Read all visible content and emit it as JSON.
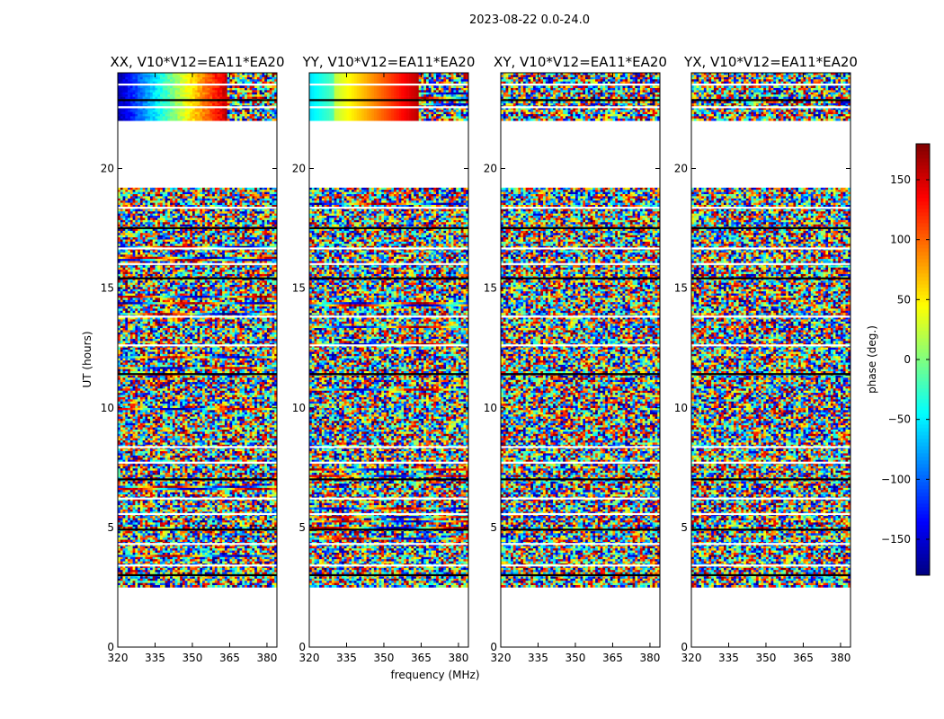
{
  "chart_data": {
    "type": "heatmap",
    "title": "2023-08-22 0.0-24.0",
    "xlabel": "frequency (MHz)",
    "ylabel": "UT (hours)",
    "xlim": [
      320,
      384
    ],
    "ylim": [
      0,
      24
    ],
    "xticks": [
      320,
      335,
      350,
      365,
      380
    ],
    "yticks": [
      0,
      5,
      10,
      15,
      20
    ],
    "panels": [
      {
        "title": "XX, V10*V12=EA11*EA20",
        "pol": "XX",
        "coherent": true
      },
      {
        "title": "YY, V10*V12=EA11*EA20",
        "pol": "YY",
        "coherent": true
      },
      {
        "title": "XY, V10*V12=EA11*EA20",
        "pol": "XY",
        "coherent": false
      },
      {
        "title": "YX, V10*V12=EA11*EA20",
        "pol": "YX",
        "coherent": false
      }
    ],
    "data_hours": [
      [
        2.5,
        19.2
      ],
      [
        22.0,
        24.0
      ]
    ],
    "gap_hours": [
      19.2,
      22.0
    ],
    "flagged_hours": [
      3.05,
      3.45,
      4.35,
      4.95,
      5.6,
      6.25,
      7.05,
      7.75,
      8.4,
      11.45,
      12.65,
      13.85,
      15.45,
      16.05,
      16.7,
      17.55,
      18.4,
      22.6,
      22.9,
      23.55
    ],
    "colorbar": {
      "label": "phase (deg.)",
      "min": -180,
      "max": 180,
      "ticks": [
        -150,
        -100,
        -50,
        0,
        50,
        100,
        150
      ],
      "tick_labels": [
        "−150",
        "−100",
        "−50",
        "0",
        "50",
        "100",
        "150"
      ],
      "colormap": "jet"
    }
  }
}
